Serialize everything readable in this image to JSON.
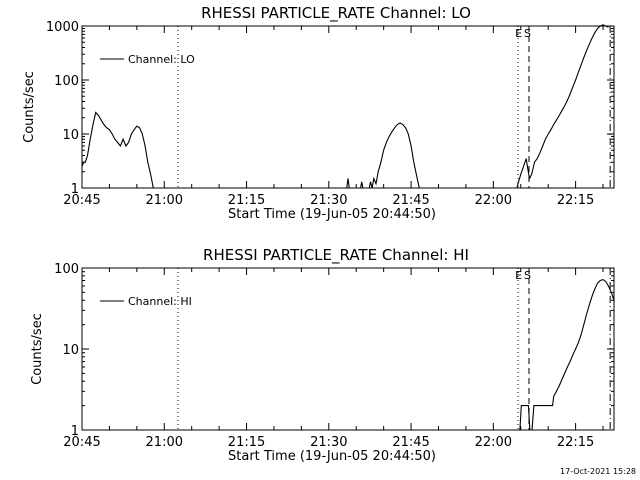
{
  "footer": {
    "timestamp": "17-Oct-2021 15:28"
  },
  "chart_data": [
    {
      "type": "line",
      "title": "RHESSI PARTICLE_RATE Channel: LO",
      "xlabel": "Start Time (19-Jun-05 20:44:50)",
      "ylabel": "Counts/sec",
      "yscale": "log",
      "ylim": [
        1,
        1000
      ],
      "xlim_minutes_since_2045": [
        0,
        97
      ],
      "yticks": [
        {
          "v": 1,
          "label": "1"
        },
        {
          "v": 10,
          "label": "10"
        },
        {
          "v": 100,
          "label": "100"
        },
        {
          "v": 1000,
          "label": "1000"
        }
      ],
      "xticks": [
        {
          "t": 0,
          "label": "20:45"
        },
        {
          "t": 15,
          "label": "21:00"
        },
        {
          "t": 30,
          "label": "21:15"
        },
        {
          "t": 45,
          "label": "21:30"
        },
        {
          "t": 60,
          "label": "21:45"
        },
        {
          "t": 75,
          "label": "22:00"
        },
        {
          "t": 90,
          "label": "22:15"
        }
      ],
      "legend": {
        "placement": "top-left",
        "entries": [
          "Channel: LO"
        ]
      },
      "vlines": [
        {
          "t": 17.5,
          "style": "dotted",
          "label": ""
        },
        {
          "t": 79.5,
          "style": "dotted",
          "label": "E"
        },
        {
          "t": 81.5,
          "style": "dashed",
          "label": "S"
        },
        {
          "t": 96.3,
          "style": "dashdot",
          "label": ""
        }
      ],
      "series": [
        {
          "name": "Channel: LO",
          "points": [
            [
              0,
              2.5
            ],
            [
              0.3,
              3
            ],
            [
              0.6,
              3
            ],
            [
              1,
              4
            ],
            [
              1.5,
              8
            ],
            [
              2,
              15
            ],
            [
              2.5,
              25
            ],
            [
              3,
              22
            ],
            [
              3.5,
              18
            ],
            [
              4,
              15
            ],
            [
              4.5,
              13
            ],
            [
              5,
              12
            ],
            [
              5.5,
              10
            ],
            [
              6,
              8
            ],
            [
              6.5,
              7
            ],
            [
              7,
              6
            ],
            [
              7.5,
              8
            ],
            [
              8,
              6
            ],
            [
              8.5,
              7
            ],
            [
              9,
              10
            ],
            [
              9.5,
              12
            ],
            [
              10,
              14
            ],
            [
              10.5,
              13
            ],
            [
              11,
              10
            ],
            [
              11.5,
              6
            ],
            [
              12,
              3
            ],
            [
              12.5,
              1.8
            ],
            [
              13,
              1
            ],
            [
              13.3,
              0.9
            ],
            [
              48.2,
              0.9
            ],
            [
              48.5,
              1.5
            ],
            [
              48.8,
              0.9
            ],
            [
              50.7,
              0.9
            ],
            [
              51,
              1.3
            ],
            [
              51.3,
              0.9
            ],
            [
              52.3,
              0.9
            ],
            [
              52.6,
              1.3
            ],
            [
              52.9,
              1
            ],
            [
              53.2,
              1.5
            ],
            [
              53.6,
              1.2
            ],
            [
              54,
              2
            ],
            [
              54.5,
              3
            ],
            [
              55,
              5
            ],
            [
              55.5,
              7
            ],
            [
              56,
              9
            ],
            [
              56.5,
              11
            ],
            [
              57,
              13
            ],
            [
              57.5,
              15
            ],
            [
              58,
              16
            ],
            [
              58.5,
              15
            ],
            [
              59,
              13
            ],
            [
              59.5,
              10
            ],
            [
              60,
              6
            ],
            [
              60.5,
              3
            ],
            [
              61,
              1.7
            ],
            [
              61.5,
              1
            ],
            [
              61.8,
              0.9
            ],
            [
              79.2,
              0.9
            ],
            [
              79.5,
              1.2
            ],
            [
              80,
              1.8
            ],
            [
              80.5,
              2.5
            ],
            [
              81,
              3.5
            ],
            [
              81.3,
              2.2
            ],
            [
              81.6,
              1.5
            ],
            [
              82,
              1.8
            ],
            [
              82.5,
              3
            ],
            [
              83,
              3.5
            ],
            [
              83.5,
              4.5
            ],
            [
              84,
              6
            ],
            [
              84.5,
              8
            ],
            [
              85,
              10
            ],
            [
              85.5,
              12
            ],
            [
              86,
              15
            ],
            [
              86.5,
              18
            ],
            [
              87,
              22
            ],
            [
              87.5,
              27
            ],
            [
              88,
              33
            ],
            [
              88.5,
              42
            ],
            [
              89,
              55
            ],
            [
              89.5,
              75
            ],
            [
              90,
              100
            ],
            [
              90.5,
              140
            ],
            [
              91,
              190
            ],
            [
              91.5,
              260
            ],
            [
              92,
              350
            ],
            [
              92.5,
              460
            ],
            [
              93,
              600
            ],
            [
              93.5,
              750
            ],
            [
              94,
              900
            ],
            [
              94.5,
              1000
            ],
            [
              95,
              1050
            ],
            [
              95.5,
              1000
            ],
            [
              96,
              950
            ]
          ]
        }
      ]
    },
    {
      "type": "line",
      "title": "RHESSI PARTICLE_RATE Channel: HI",
      "xlabel": "Start Time (19-Jun-05 20:44:50)",
      "ylabel": "Counts/sec",
      "yscale": "log",
      "ylim": [
        1,
        100
      ],
      "xlim_minutes_since_2045": [
        0,
        97
      ],
      "yticks": [
        {
          "v": 1,
          "label": "1"
        },
        {
          "v": 10,
          "label": "10"
        },
        {
          "v": 100,
          "label": "100"
        }
      ],
      "xticks": [
        {
          "t": 0,
          "label": "20:45"
        },
        {
          "t": 15,
          "label": "21:00"
        },
        {
          "t": 30,
          "label": "21:15"
        },
        {
          "t": 45,
          "label": "21:30"
        },
        {
          "t": 60,
          "label": "21:45"
        },
        {
          "t": 75,
          "label": "22:00"
        },
        {
          "t": 90,
          "label": "22:15"
        }
      ],
      "legend": {
        "placement": "top-left",
        "entries": [
          "Channel: HI"
        ]
      },
      "vlines": [
        {
          "t": 17.5,
          "style": "dotted",
          "label": ""
        },
        {
          "t": 79.5,
          "style": "dotted",
          "label": "E"
        },
        {
          "t": 81.5,
          "style": "dashed",
          "label": "S"
        },
        {
          "t": 96.3,
          "style": "dashdot",
          "label": ""
        }
      ],
      "series": [
        {
          "name": "Channel: HI",
          "points": [
            [
              79.8,
              0.9
            ],
            [
              80.1,
              2
            ],
            [
              80.6,
              2
            ],
            [
              81,
              2
            ],
            [
              81.4,
              2
            ],
            [
              81.7,
              0.9
            ],
            [
              82,
              0.9
            ],
            [
              82.4,
              2
            ],
            [
              82.8,
              2
            ],
            [
              83,
              2
            ],
            [
              83.3,
              2
            ],
            [
              83.6,
              2
            ],
            [
              84,
              2
            ],
            [
              84.5,
              2
            ],
            [
              85,
              2
            ],
            [
              85.5,
              2
            ],
            [
              85.8,
              2
            ],
            [
              86,
              2.6
            ],
            [
              86.5,
              3
            ],
            [
              87,
              3.5
            ],
            [
              87.5,
              4.2
            ],
            [
              88,
              5
            ],
            [
              88.5,
              6
            ],
            [
              89,
              7
            ],
            [
              89.5,
              8.5
            ],
            [
              90,
              10
            ],
            [
              90.5,
              12
            ],
            [
              91,
              15
            ],
            [
              91.5,
              20
            ],
            [
              92,
              27
            ],
            [
              92.5,
              35
            ],
            [
              93,
              45
            ],
            [
              93.5,
              55
            ],
            [
              94,
              65
            ],
            [
              94.5,
              70
            ],
            [
              95,
              72
            ],
            [
              95.5,
              68
            ],
            [
              96,
              60
            ],
            [
              96.5,
              50
            ],
            [
              97,
              40
            ]
          ]
        }
      ]
    }
  ]
}
